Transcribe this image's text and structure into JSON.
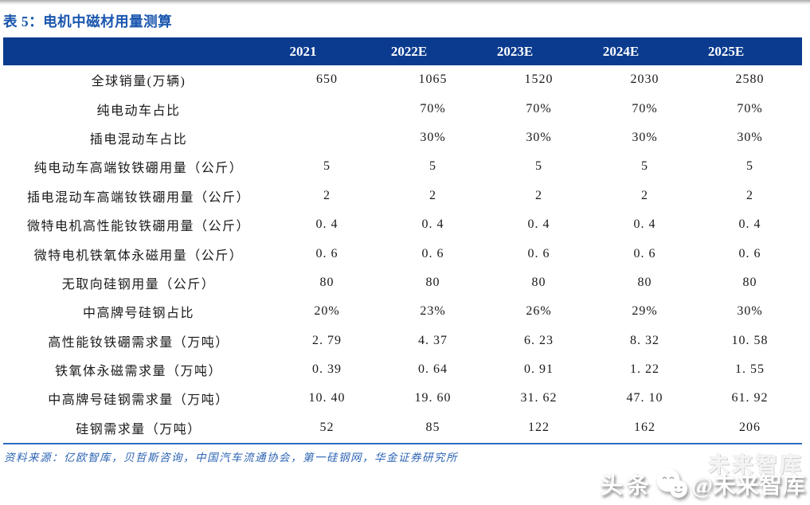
{
  "report": {
    "title": "表 5：电机中磁材用量测算",
    "source_note": "资料来源：亿欧智库，贝哲斯咨询，中国汽车流通协会，第一硅钢网，华金证券研究所"
  },
  "table": {
    "years": [
      "2021",
      "2022E",
      "2023E",
      "2024E",
      "2025E"
    ],
    "rows": [
      {
        "label": "全球销量(万辆)",
        "values": [
          "650",
          "1065",
          "1520",
          "2030",
          "2580"
        ]
      },
      {
        "label": "纯电动车占比",
        "values": [
          "",
          "70%",
          "70%",
          "70%",
          "70%"
        ]
      },
      {
        "label": "插电混动车占比",
        "values": [
          "",
          "30%",
          "30%",
          "30%",
          "30%"
        ]
      },
      {
        "label": "纯电动车高端钕铁硼用量（公斤）",
        "values": [
          "5",
          "5",
          "5",
          "5",
          "5"
        ]
      },
      {
        "label": "插电混动车高端钕铁硼用量（公斤）",
        "values": [
          "2",
          "2",
          "2",
          "2",
          "2"
        ]
      },
      {
        "label": "微特电机高性能钕铁硼用量（公斤）",
        "values": [
          "0. 4",
          "0. 4",
          "0. 4",
          "0. 4",
          "0. 4"
        ]
      },
      {
        "label": "微特电机铁氧体永磁用量（公斤）",
        "values": [
          "0. 6",
          "0. 6",
          "0. 6",
          "0. 6",
          "0. 6"
        ]
      },
      {
        "label": "无取向硅钢用量（公斤）",
        "values": [
          "80",
          "80",
          "80",
          "80",
          "80"
        ]
      },
      {
        "label": "中高牌号硅钢占比",
        "values": [
          "20%",
          "23%",
          "26%",
          "29%",
          "30%"
        ]
      },
      {
        "label": "高性能钕铁硼需求量（万吨）",
        "values": [
          "2. 79",
          "4. 37",
          "6. 23",
          "8. 32",
          "10. 58"
        ]
      },
      {
        "label": "铁氧体永磁需求量（万吨）",
        "values": [
          "0. 39",
          "0. 64",
          "0. 91",
          "1. 22",
          "1. 55"
        ]
      },
      {
        "label": "中高牌号硅钢需求量（万吨）",
        "values": [
          "10. 40",
          "19. 60",
          "31. 62",
          "47. 10",
          "61. 92"
        ]
      },
      {
        "label": "硅钢需求量（万吨）",
        "values": [
          "52",
          "85",
          "122",
          "162",
          "206"
        ]
      }
    ]
  },
  "watermark": {
    "platform": "头条",
    "handle": "@未来智库",
    "ghost": "未来智库",
    "icon": "wechat-smileys-icon"
  },
  "colors": {
    "header-bg": "#0b3b8e",
    "title-blue": "#1a56ae",
    "divider-blue": "#2e6cc0",
    "source-blue": "#2d64b4",
    "body-text": "#1a1a1a"
  }
}
